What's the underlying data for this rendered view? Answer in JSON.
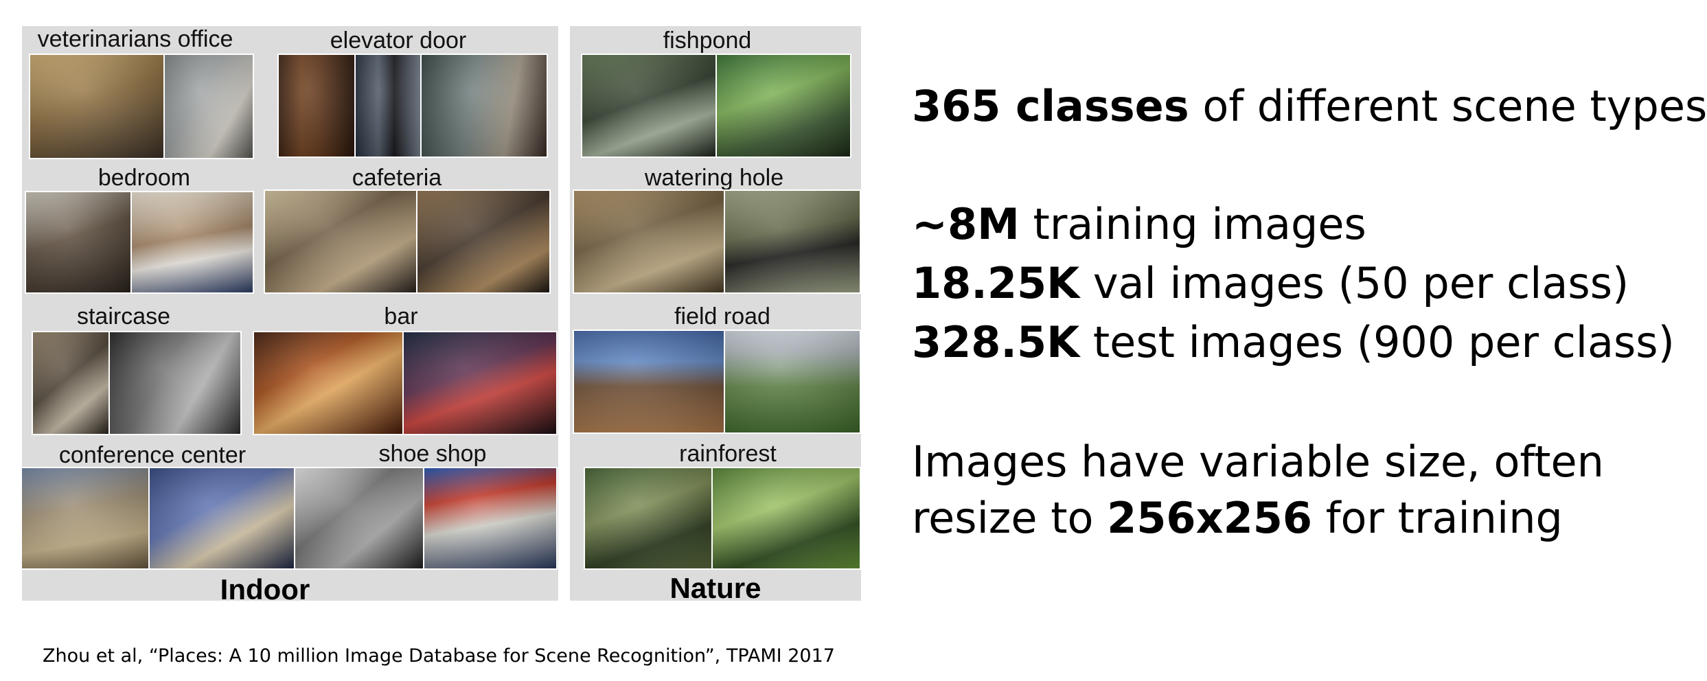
{
  "indoor": {
    "title": "Indoor",
    "categories": [
      {
        "label": "veterinarians office"
      },
      {
        "label": "elevator door"
      },
      {
        "label": "bedroom"
      },
      {
        "label": "cafeteria"
      },
      {
        "label": "staircase"
      },
      {
        "label": "bar"
      },
      {
        "label": "conference center"
      },
      {
        "label": "shoe shop"
      }
    ]
  },
  "nature": {
    "title": "Nature",
    "categories": [
      {
        "label": "fishpond"
      },
      {
        "label": "watering hole"
      },
      {
        "label": "field road"
      },
      {
        "label": "rainforest"
      }
    ]
  },
  "stats": {
    "classes_bold": "365 classes",
    "classes_rest": " of different scene types",
    "train_bold": "~8M",
    "train_rest": " training images",
    "val_bold": "18.25K",
    "val_rest": " val images (50 per class)",
    "test_bold": "328.5K",
    "test_rest": " test images (900 per class)",
    "size_line1": "Images have variable size, often",
    "size_line2_pre": "resize to ",
    "size_line2_bold": "256x256",
    "size_line2_post": " for training"
  },
  "citation": "Zhou et al, “Places: A 10 million Image Database for Scene Recognition”, TPAMI 2017"
}
